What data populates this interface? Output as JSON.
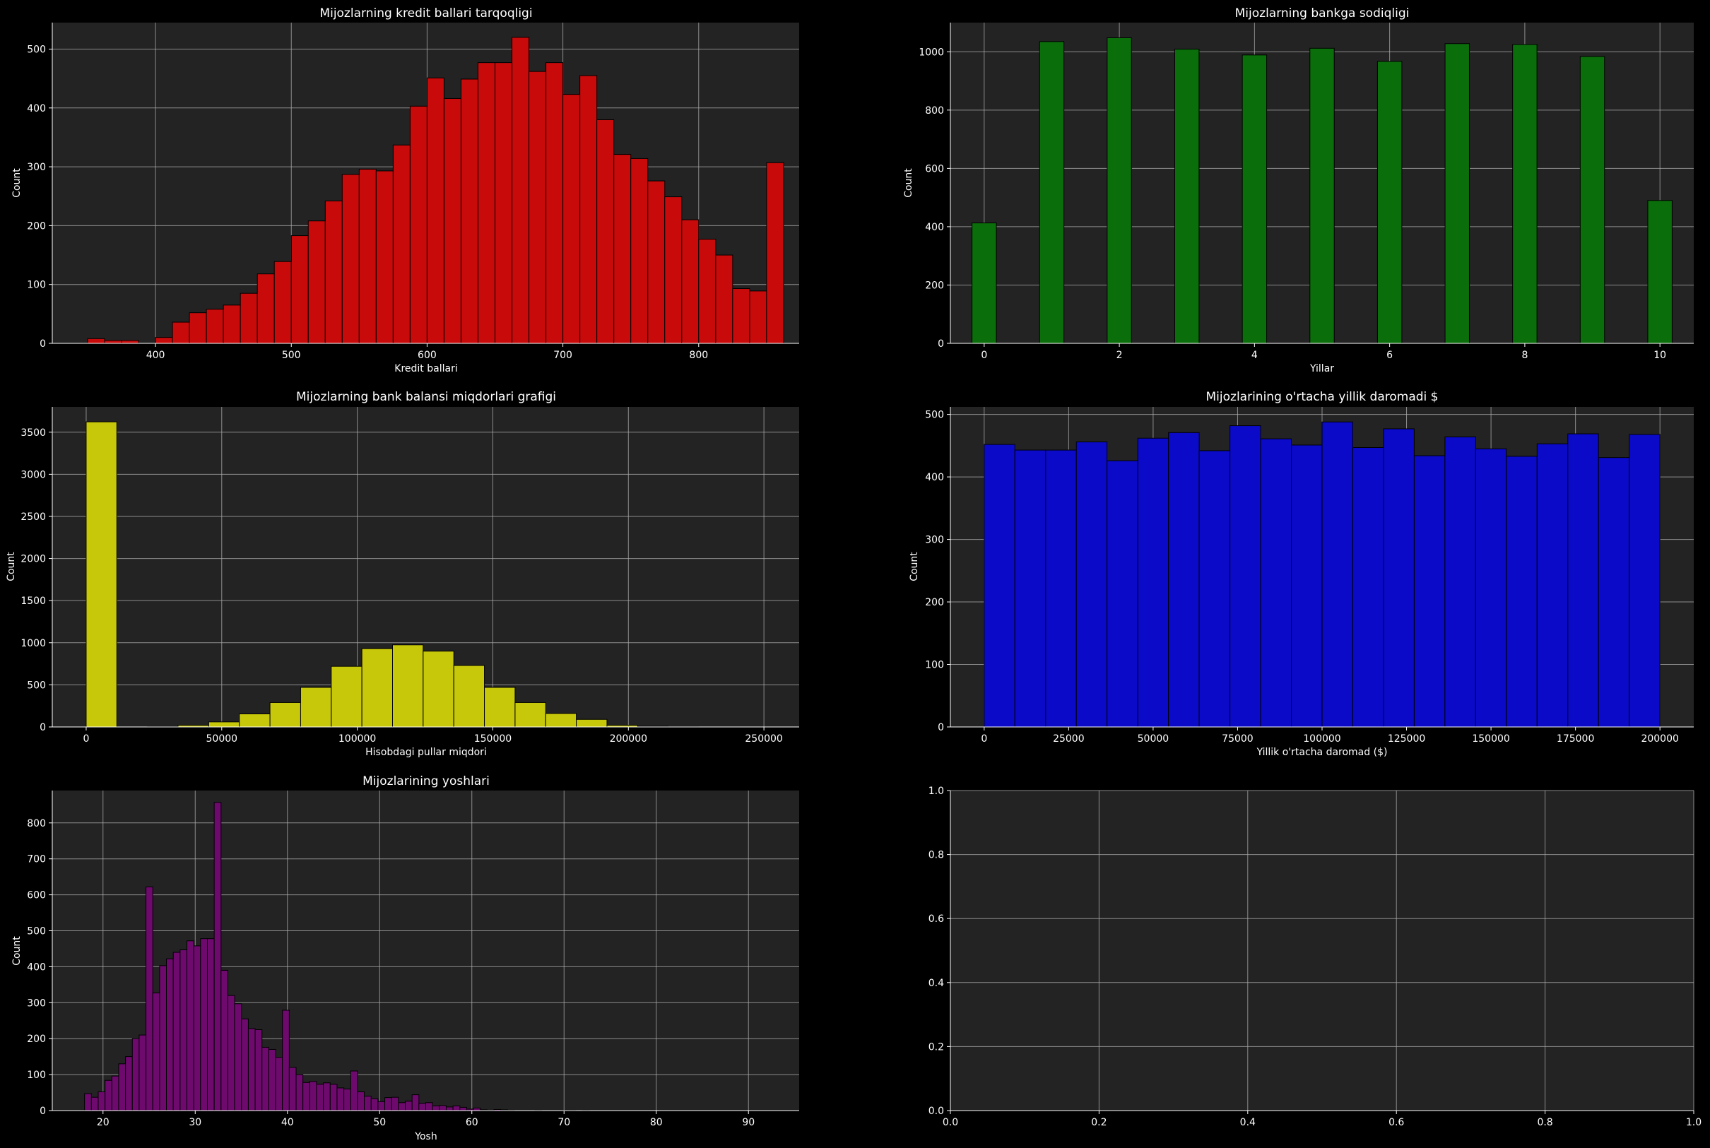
{
  "figure": {
    "background": "#000000",
    "axes_face": "#232323",
    "grid_color": "#b0b0b0",
    "text_color": "#ffffff",
    "edge_color": "#000000"
  },
  "chart_data": [
    {
      "type": "bar",
      "title": "Mijozlarning kredit ballari tarqoqligi",
      "xlabel": "Kredit ballari",
      "ylabel": "Count",
      "color": "#c80a0a",
      "xlim": [
        324,
        874
      ],
      "ylim": [
        0,
        545
      ],
      "xticks": [
        400,
        500,
        600,
        700,
        800
      ],
      "yticks": [
        0,
        100,
        200,
        300,
        400,
        500
      ],
      "grid": true,
      "bin_start": 350,
      "bin_width": 12.5,
      "values": [
        8,
        5,
        5,
        0,
        10,
        36,
        52,
        58,
        65,
        85,
        118,
        139,
        183,
        208,
        242,
        287,
        296,
        293,
        337,
        403,
        451,
        416,
        449,
        477,
        477,
        520,
        462,
        477,
        423,
        455,
        380,
        321,
        314,
        276,
        249,
        210,
        177,
        150,
        93,
        89,
        307
      ]
    },
    {
      "type": "bar",
      "title": "Mijozlarning bankga sodiqligi",
      "xlabel": "Yillar",
      "ylabel": "Count",
      "color": "#0a6e0a",
      "xlim": [
        -0.5,
        10.5
      ],
      "ylim": [
        0,
        1100
      ],
      "xticks": [
        0,
        2,
        4,
        6,
        8,
        10
      ],
      "yticks": [
        0,
        200,
        400,
        600,
        800,
        1000
      ],
      "grid": true,
      "bar_width": 0.36,
      "bars": [
        {
          "x": 0,
          "value": 413
        },
        {
          "x": 1,
          "value": 1035
        },
        {
          "x": 2,
          "value": 1048
        },
        {
          "x": 3,
          "value": 1009
        },
        {
          "x": 4,
          "value": 989
        },
        {
          "x": 5,
          "value": 1012
        },
        {
          "x": 6,
          "value": 967
        },
        {
          "x": 7,
          "value": 1028
        },
        {
          "x": 8,
          "value": 1025
        },
        {
          "x": 9,
          "value": 984
        },
        {
          "x": 10,
          "value": 490
        }
      ]
    },
    {
      "type": "bar",
      "title": "Mijozlarning bank balansi miqdorlari grafigi",
      "xlabel": "Hisobdagi pullar miqdori",
      "ylabel": "Count",
      "color": "#c8c80a",
      "xlim": [
        -12500,
        263000
      ],
      "ylim": [
        0,
        3800
      ],
      "xticks": [
        0,
        50000,
        100000,
        150000,
        200000,
        250000
      ],
      "yticks": [
        0,
        500,
        1000,
        1500,
        2000,
        2500,
        3000,
        3500
      ],
      "grid": true,
      "bin_start": 0,
      "bin_width": 11300,
      "values": [
        3623,
        0,
        5,
        20,
        60,
        155,
        290,
        470,
        720,
        930,
        975,
        900,
        730,
        470,
        290,
        160,
        90,
        20,
        8,
        2
      ]
    },
    {
      "type": "bar",
      "title": "Mijozlarining o'rtacha yillik daromadi $",
      "xlabel": "Yillik o'rtacha daromad ($)",
      "ylabel": "Count",
      "color": "#0a0ac8",
      "xlim": [
        -10000,
        210000
      ],
      "ylim": [
        0,
        512
      ],
      "xticks": [
        0,
        25000,
        50000,
        75000,
        100000,
        125000,
        150000,
        175000,
        200000
      ],
      "yticks": [
        0,
        100,
        200,
        300,
        400,
        500
      ],
      "grid": true,
      "bin_start": 0,
      "bin_width": 9090.9,
      "values": [
        452,
        443,
        443,
        456,
        426,
        462,
        471,
        442,
        482,
        461,
        451,
        488,
        447,
        477,
        434,
        464,
        445,
        433,
        453,
        469,
        431,
        468
      ]
    },
    {
      "type": "bar",
      "title": "Mijozlarining yoshlari",
      "xlabel": "Yosh",
      "ylabel": "Count",
      "color": "#6e0a6e",
      "xlim": [
        14.5,
        95.5
      ],
      "ylim": [
        0,
        890
      ],
      "xticks": [
        20,
        30,
        40,
        50,
        60,
        70,
        80,
        90
      ],
      "yticks": [
        0,
        100,
        200,
        300,
        400,
        500,
        600,
        700,
        800
      ],
      "grid": true,
      "bin_start": 18,
      "bin_width": 0.74,
      "values": [
        47,
        37,
        52,
        84,
        96,
        130,
        150,
        200,
        210,
        622,
        327,
        403,
        422,
        440,
        447,
        472,
        458,
        478,
        478,
        857,
        390,
        320,
        297,
        255,
        228,
        225,
        176,
        170,
        148,
        279,
        120,
        100,
        78,
        81,
        73,
        77,
        73,
        63,
        60,
        110,
        52,
        40,
        33,
        25,
        36,
        37,
        22,
        26,
        44,
        20,
        22,
        13,
        14,
        10,
        13,
        9,
        4,
        7,
        2,
        1,
        3,
        2,
        1,
        0,
        0,
        0,
        1,
        0,
        0,
        0,
        1,
        1,
        0,
        1
      ]
    },
    {
      "type": "bar",
      "title": "",
      "xlabel": "",
      "ylabel": "",
      "color": "#232323",
      "xlim": [
        0,
        1
      ],
      "ylim": [
        0,
        1
      ],
      "xticks": [
        0.0,
        0.2,
        0.4,
        0.6,
        0.8,
        1.0
      ],
      "yticks": [
        0.0,
        0.2,
        0.4,
        0.6,
        0.8,
        1.0
      ],
      "tick_decimals": 1,
      "grid": true,
      "values": []
    }
  ]
}
